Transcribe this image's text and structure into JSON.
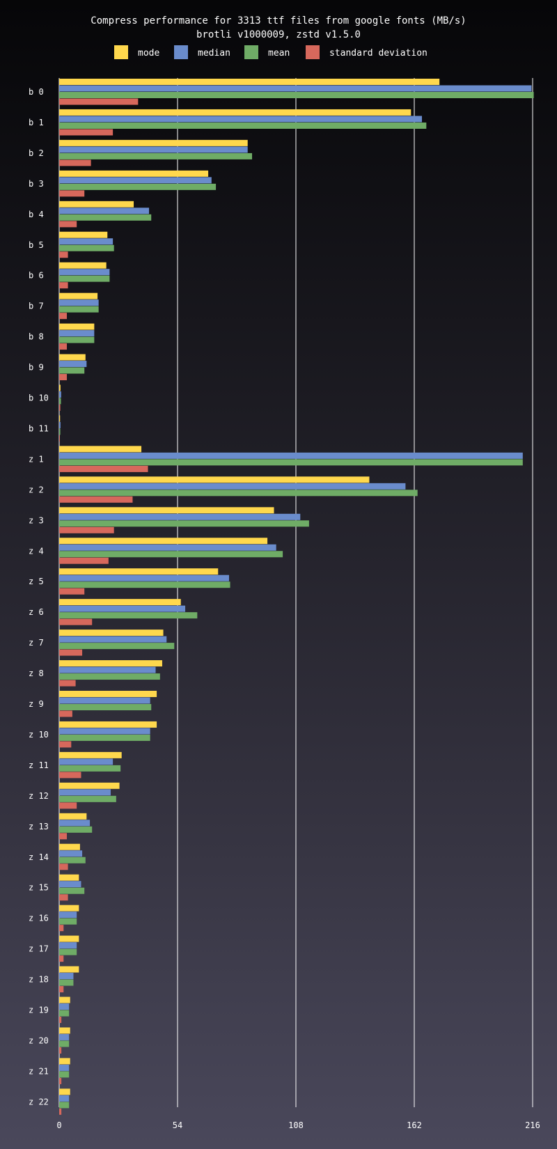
{
  "chart_data": {
    "type": "bar",
    "orientation": "horizontal",
    "title": "Compress performance for 3313 ttf files from google fonts (MB/s)",
    "subtitle": "brotli v1000009, zstd v1.5.0",
    "xlim": [
      0,
      216
    ],
    "xticks": [
      0,
      54,
      108,
      162,
      216
    ],
    "grid": true,
    "legend_position": "top",
    "categories": [
      "b  0",
      "b  1",
      "b  2",
      "b  3",
      "b  4",
      "b  5",
      "b  6",
      "b  7",
      "b  8",
      "b  9",
      "b 10",
      "b 11",
      "z  1",
      "z  2",
      "z  3",
      "z  4",
      "z  5",
      "z  6",
      "z  7",
      "z  8",
      "z  9",
      "z 10",
      "z 11",
      "z 12",
      "z 13",
      "z 14",
      "z 15",
      "z 16",
      "z 17",
      "z 18",
      "z 19",
      "z 20",
      "z 21",
      "z 22"
    ],
    "series": [
      {
        "name": "mode",
        "color": "#ffd84d",
        "values": [
          173.5,
          160.5,
          86,
          68,
          34,
          22,
          21.5,
          17.5,
          16,
          12,
          0.6,
          0.4,
          37.5,
          141.5,
          98,
          95,
          72.5,
          55.5,
          47.5,
          47,
          44.5,
          44.5,
          28.5,
          27.5,
          12.5,
          9.5,
          9,
          9,
          9,
          9,
          5,
          5,
          5,
          5
        ]
      },
      {
        "name": "median",
        "color": "#6a8ccc",
        "values": [
          215.5,
          165.5,
          86,
          69.5,
          41,
          24.5,
          23,
          18,
          16,
          12.5,
          0.9,
          0.6,
          211.5,
          158,
          110,
          99,
          77.5,
          57.5,
          49,
          44,
          41.5,
          41.5,
          24.5,
          23.5,
          14,
          10.5,
          10,
          8,
          8,
          6.5,
          4.5,
          4.5,
          4.5,
          4.5
        ]
      },
      {
        "name": "mean",
        "color": "#6fac66",
        "values": [
          216.5,
          167.5,
          88,
          71.5,
          42,
          25,
          23,
          18,
          16,
          11.5,
          0.8,
          0.5,
          211.5,
          163.5,
          114,
          102,
          78,
          63,
          52.5,
          46,
          42,
          41.5,
          28,
          26,
          15,
          12,
          11.5,
          8,
          8,
          6.5,
          4.5,
          4.5,
          4.5,
          4.5
        ]
      },
      {
        "name": "standard deviation",
        "color": "#d7685c",
        "values": [
          36,
          24.5,
          14.5,
          11.5,
          8,
          4,
          4,
          3.5,
          3.5,
          3.5,
          0.5,
          0.3,
          40.5,
          33.5,
          25,
          22.5,
          11.5,
          15,
          10.5,
          7.5,
          6,
          5.5,
          10,
          8,
          3.5,
          4,
          4,
          2,
          2,
          2,
          1,
          1,
          1,
          1
        ]
      }
    ]
  }
}
